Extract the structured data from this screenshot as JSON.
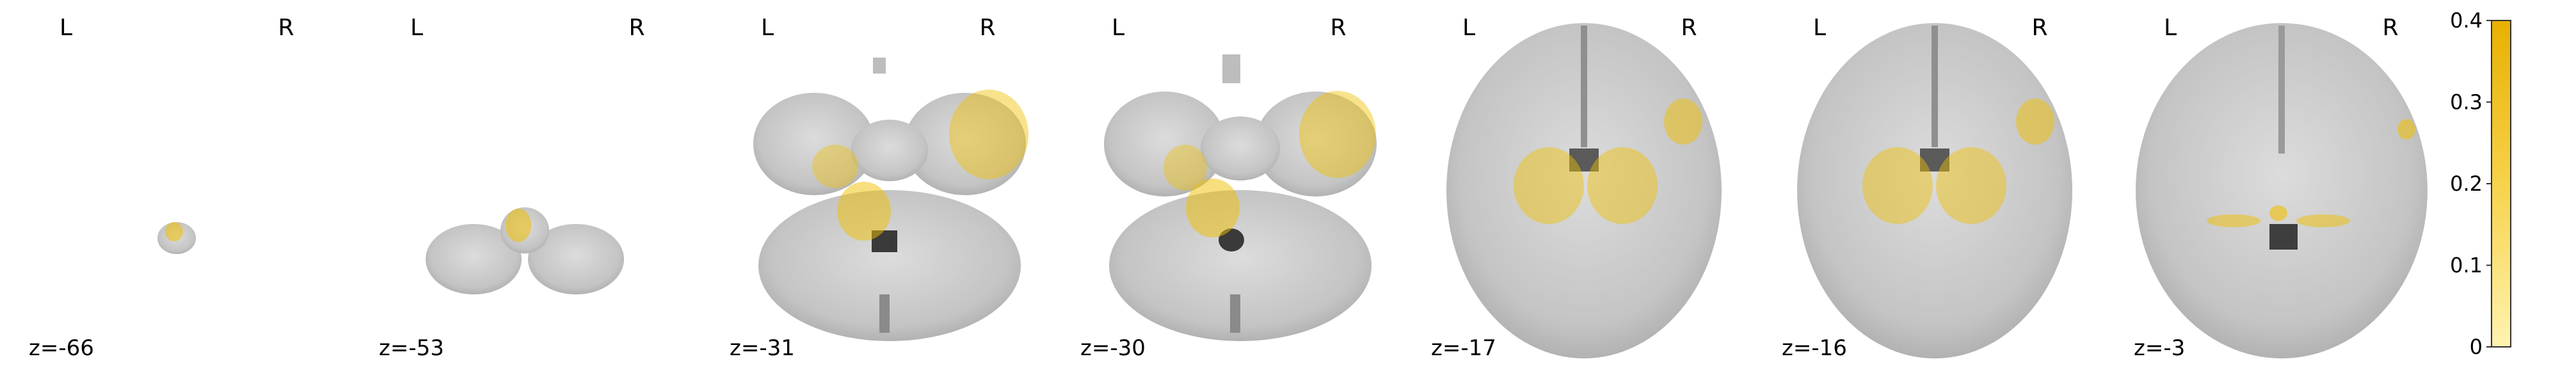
{
  "figure": {
    "type": "brain-axial-slices",
    "background_color": "#ffffff",
    "brain_color": "#c9c9c9",
    "overlay_color": "#f0c000"
  },
  "orientation": {
    "left": "L",
    "right": "R"
  },
  "slices": [
    {
      "coord_label": "z=-66"
    },
    {
      "coord_label": "z=-53"
    },
    {
      "coord_label": "z=-31"
    },
    {
      "coord_label": "z=-30"
    },
    {
      "coord_label": "z=-17"
    },
    {
      "coord_label": "z=-16"
    },
    {
      "coord_label": "z=-3"
    }
  ],
  "colorbar": {
    "colormap": "transparent-to-yellow",
    "min": 0,
    "max": 0.4,
    "ticks": [
      "0",
      "0.1",
      "0.2",
      "0.3",
      "0.4"
    ],
    "tick_values": [
      0,
      0.1,
      0.2,
      0.3,
      0.4
    ]
  }
}
